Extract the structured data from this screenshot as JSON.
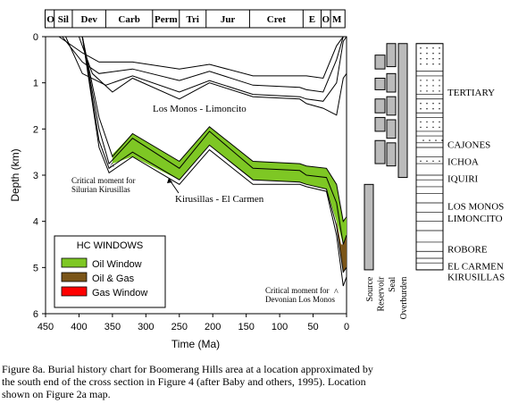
{
  "chart_data": {
    "type": "area",
    "title": "",
    "xlabel": "Time (Ma)",
    "ylabel": "Depth (km)",
    "xlim": [
      450,
      0
    ],
    "ylim": [
      0,
      6
    ],
    "x_ticks": [
      "450",
      "400",
      "350",
      "300",
      "250",
      "200",
      "150",
      "100",
      "50",
      "0"
    ],
    "y_ticks": [
      "0",
      "1",
      "2",
      "3",
      "4",
      "5",
      "6"
    ],
    "periods": [
      {
        "label": "O",
        "start": 448,
        "end": 437
      },
      {
        "label": "Sil",
        "start": 437,
        "end": 410
      },
      {
        "label": "Dev",
        "start": 410,
        "end": 360
      },
      {
        "label": "Carb",
        "start": 360,
        "end": 290
      },
      {
        "label": "Perm",
        "start": 290,
        "end": 250
      },
      {
        "label": "Tri",
        "start": 250,
        "end": 210
      },
      {
        "label": "Jur",
        "start": 210,
        "end": 145
      },
      {
        "label": "Cret",
        "start": 145,
        "end": 65
      },
      {
        "label": "E",
        "start": 65,
        "end": 38
      },
      {
        "label": "O",
        "start": 38,
        "end": 24
      },
      {
        "label": "M",
        "start": 24,
        "end": 5
      }
    ],
    "burial_lines": [
      {
        "x": [
          430,
          395,
          370,
          320,
          250,
          205,
          140,
          70,
          60,
          35,
          15,
          5,
          0
        ],
        "y": [
          0,
          0.35,
          0.55,
          0.55,
          0.7,
          0.6,
          0.85,
          0.85,
          0.85,
          0.9,
          0.2,
          0,
          0
        ]
      },
      {
        "x": [
          425,
          395,
          370,
          320,
          250,
          205,
          140,
          70,
          60,
          35,
          15,
          5,
          0
        ],
        "y": [
          0,
          0.55,
          0.8,
          0.7,
          0.95,
          0.75,
          1.05,
          1.1,
          1.15,
          1.2,
          0.5,
          0,
          0
        ]
      },
      {
        "x": [
          420,
          395,
          360,
          320,
          250,
          205,
          140,
          70,
          60,
          35,
          15,
          5,
          0
        ],
        "y": [
          0,
          0.8,
          1.05,
          0.85,
          1.2,
          0.95,
          1.25,
          1.3,
          1.35,
          1.4,
          1.0,
          0.1,
          0
        ]
      },
      {
        "x": [
          400,
          380,
          350,
          320,
          250,
          205,
          140,
          70,
          60,
          35,
          15,
          5,
          0
        ],
        "y": [
          0,
          0.8,
          1.2,
          0.9,
          1.35,
          1.0,
          1.3,
          1.35,
          1.45,
          1.55,
          1.7,
          0.9,
          0.8
        ]
      },
      {
        "x": [
          395,
          370,
          350,
          320,
          250,
          205,
          140,
          70,
          60,
          30,
          15,
          5,
          0
        ],
        "y": [
          0,
          1.75,
          2.6,
          2.1,
          2.7,
          1.95,
          2.7,
          2.75,
          2.8,
          2.85,
          3.2,
          4.0,
          3.9
        ]
      },
      {
        "x": [
          395,
          370,
          355,
          320,
          250,
          205,
          140,
          70,
          60,
          30,
          15,
          5,
          0
        ],
        "y": [
          0,
          2.0,
          2.75,
          2.2,
          2.85,
          2.05,
          2.85,
          2.9,
          3.0,
          3.05,
          3.6,
          4.5,
          4.3
        ]
      },
      {
        "x": [
          395,
          370,
          355,
          320,
          250,
          205,
          140,
          70,
          60,
          30,
          15,
          5,
          0
        ],
        "y": [
          0,
          2.25,
          2.85,
          2.5,
          3.1,
          2.35,
          3.1,
          3.15,
          3.2,
          3.3,
          4.1,
          5.1,
          5.0
        ]
      },
      {
        "x": [
          395,
          370,
          355,
          320,
          250,
          205,
          140,
          70,
          60,
          30,
          15,
          5,
          0
        ],
        "y": [
          0,
          2.4,
          2.95,
          2.6,
          3.2,
          2.45,
          3.2,
          3.2,
          3.25,
          3.35,
          4.3,
          5.4,
          5.2
        ]
      }
    ],
    "hc_windows": [
      {
        "name": "Oil Window",
        "color": "#7ec724",
        "x": [
          350,
          320,
          250,
          205,
          140,
          70,
          60,
          30,
          15,
          5,
          0
        ],
        "top": [
          2.55,
          2.1,
          2.7,
          1.95,
          2.7,
          2.75,
          2.8,
          2.85,
          3.2,
          4.0,
          3.9
        ],
        "bottom": [
          2.75,
          2.6,
          3.1,
          2.35,
          3.1,
          3.15,
          3.2,
          3.3,
          4.0,
          4.5,
          4.3
        ]
      },
      {
        "name": "Oil & Gas",
        "color": "#7a5518",
        "x": [
          15,
          8,
          5,
          2,
          0
        ],
        "top": [
          4.0,
          4.5,
          4.5,
          4.4,
          4.3
        ],
        "bottom": [
          4.1,
          4.8,
          5.1,
          5.05,
          5.0
        ]
      },
      {
        "name": "Gas Window",
        "color": "#ff0000",
        "x": [],
        "top": [],
        "bottom": []
      }
    ],
    "legend_title": "HC WINDOWS",
    "legend_placement": "bottom-left",
    "annotations": {
      "los_monos": "Los Monos - Limoncito",
      "kirusillas": "Kirusillas - El Carmen",
      "critical_silurian_1": "Critical moment for",
      "critical_silurian_2": "Silurian Kirusillas",
      "critical_devonian_1": "Critical moment for",
      "critical_devonian_2": "Devonian Los Monos",
      "caret_1": "^",
      "caret_2": "^"
    },
    "petroleum_system_elements": [
      {
        "name": "Source",
        "top": 3.2,
        "bottom": 5.05
      },
      {
        "name": "Reservoir",
        "intervals": [
          [
            0.4,
            0.7
          ],
          [
            0.9,
            1.15
          ],
          [
            1.35,
            1.65
          ],
          [
            1.75,
            2.05
          ],
          [
            2.25,
            2.75
          ]
        ]
      },
      {
        "name": "Seal",
        "intervals": [
          [
            0.15,
            0.65
          ],
          [
            0.8,
            1.2
          ],
          [
            1.3,
            1.7
          ],
          [
            1.8,
            2.2
          ],
          [
            2.3,
            2.8
          ]
        ]
      },
      {
        "name": "Overburden",
        "top": 0.15,
        "bottom": 3.05
      }
    ],
    "formations": [
      "TERTIARY",
      "CAJONES",
      "ICHOA",
      "IQUIRI",
      "LOS MONOS",
      "LIMONCITO",
      "ROBORE",
      "EL CARMEN",
      "KIRUSILLAS"
    ]
  },
  "caption": {
    "lines": [
      "Figure 8a.  Burial history chart for Boomerang Hills area at a location approximated by",
      "the south end of the cross section in Figure 4 (after Baby and others, 1995).  Location",
      "shown on Figure 2a map."
    ]
  }
}
